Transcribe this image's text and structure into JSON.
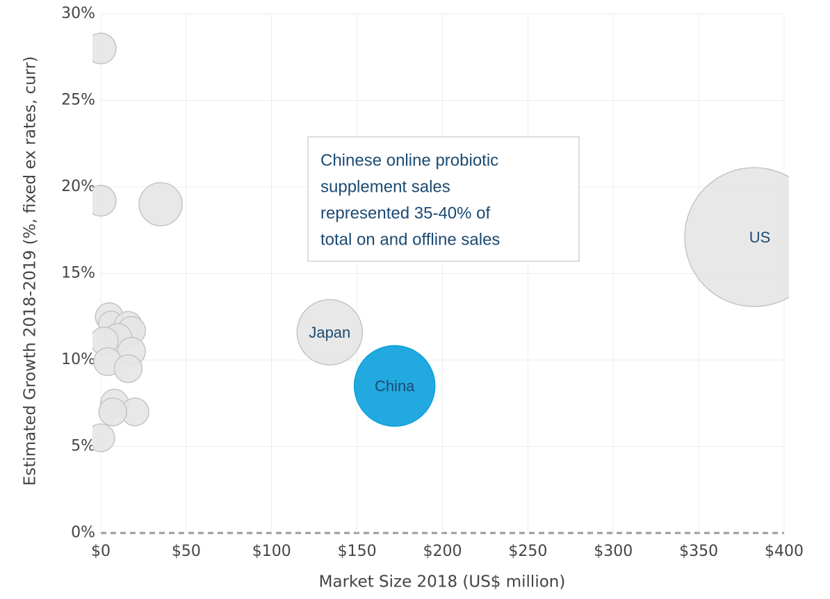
{
  "chart_data": {
    "type": "bubble",
    "x_label": "Market Size 2018 (US$ million)",
    "y_label": "Estimated Growth 2018-2019 (%, fixed ex rates, curr)",
    "annotation": [
      "Chinese online probiotic",
      "supplement sales",
      "represented 35-40% of",
      "total on and offline sales"
    ],
    "x": [
      0,
      0,
      35,
      382.5,
      134,
      172,
      5,
      6,
      16,
      18,
      10,
      2,
      18,
      4,
      16,
      8,
      20,
      7,
      0
    ],
    "y": [
      28,
      19.2,
      19,
      17.1,
      11.6,
      8.5,
      12.5,
      12.1,
      12,
      11.7,
      11.3,
      11.1,
      10.5,
      9.9,
      9.5,
      7.5,
      7,
      7,
      5.5
    ],
    "sizes": [
      22,
      22,
      31,
      100,
      47,
      58,
      20,
      18,
      20,
      20,
      20,
      20,
      20,
      20,
      20,
      20,
      20,
      20,
      20
    ],
    "labels": [
      null,
      null,
      null,
      "US",
      "Japan",
      "China",
      null,
      null,
      null,
      null,
      null,
      null,
      null,
      null,
      null,
      null,
      null,
      null,
      null
    ],
    "colors": [
      "#e6e6e6",
      "#e6e6e6",
      "#e6e6e6",
      "#e6e6e6",
      "#e6e6e6",
      "#0aa0dc",
      "#e6e6e6",
      "#e6e6e6",
      "#e6e6e6",
      "#e6e6e6",
      "#e6e6e6",
      "#e6e6e6",
      "#e6e6e6",
      "#e6e6e6",
      "#e6e6e6",
      "#e6e6e6",
      "#e6e6e6",
      "#e6e6e6",
      "#e6e6e6"
    ],
    "xlim": [
      0,
      400
    ],
    "xticks": [
      {
        "value": 0,
        "label": "$0"
      },
      {
        "value": 50,
        "label": "$50"
      },
      {
        "value": 100,
        "label": "$100"
      },
      {
        "value": 150,
        "label": "$150"
      },
      {
        "value": 200,
        "label": "$200"
      },
      {
        "value": 250,
        "label": "$250"
      },
      {
        "value": 300,
        "label": "$300"
      },
      {
        "value": 350,
        "label": "$350"
      },
      {
        "value": 400,
        "label": "$400"
      }
    ],
    "ylim": [
      0,
      30
    ],
    "yticks": [
      {
        "value": 0,
        "label": "0%"
      },
      {
        "value": 5,
        "label": "5%"
      },
      {
        "value": 10,
        "label": "10%"
      },
      {
        "value": 15,
        "label": "15%"
      },
      {
        "value": 20,
        "label": "20%"
      },
      {
        "value": 25,
        "label": "25%"
      },
      {
        "value": 30,
        "label": "30%"
      }
    ],
    "grid": true
  }
}
